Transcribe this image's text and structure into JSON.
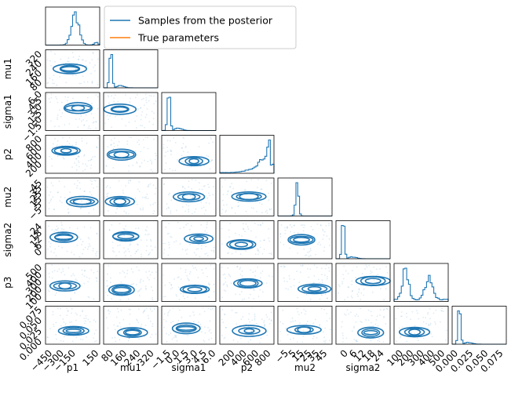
{
  "chart_data": {
    "type": "scatter",
    "subtype": "corner-plot",
    "params": [
      {
        "name": "P1",
        "label": "mu1",
        "xticks": [
          "−450",
          "−300",
          "−150",
          "150"
        ],
        "xtick_values": [
          -450,
          -300,
          -150,
          150
        ],
        "range": [
          -500,
          200
        ],
        "hist_shape": "unimodal-left"
      },
      {
        "name": "P2",
        "label": "mu1",
        "xticks": [
          "80",
          "160",
          "240",
          "320"
        ],
        "xtick_values": [
          80,
          160,
          240,
          320
        ],
        "range": [
          40,
          360
        ],
        "hist_shape": "spike-left"
      },
      {
        "name": "P3",
        "label": "sigma1",
        "xticks": [
          "−1.5",
          "0.0",
          "1.5",
          "3.0",
          "4.5",
          "6.0"
        ],
        "xtick_values": [
          -1.5,
          0.0,
          1.5,
          3.0,
          4.5,
          6.0
        ],
        "range": [
          -2.5,
          6.5
        ],
        "hist_shape": "spike-left"
      },
      {
        "name": "P4",
        "label": "p2",
        "xticks": [
          "200",
          "400",
          "600",
          "800"
        ],
        "xtick_values": [
          200,
          400,
          600,
          800
        ],
        "range": [
          0,
          900
        ],
        "hist_shape": "ramp-right"
      },
      {
        "name": "P5",
        "label": "mu2",
        "xticks": [
          "−5",
          "5",
          "15",
          "25",
          "35",
          "45"
        ],
        "xtick_values": [
          -5,
          5,
          15,
          25,
          35,
          45
        ],
        "range": [
          -15,
          55
        ],
        "hist_shape": "spike-mid"
      },
      {
        "name": "P6",
        "label": "sigma2",
        "xticks": [
          "0",
          "6",
          "12",
          "18",
          "24"
        ],
        "xtick_values": [
          0,
          6,
          12,
          18,
          24
        ],
        "range": [
          -6,
          30
        ],
        "hist_shape": "spike-left"
      },
      {
        "name": "P7",
        "label": "p3",
        "xticks": [
          "100",
          "200",
          "300",
          "400",
          "500"
        ],
        "xtick_values": [
          100,
          200,
          300,
          400,
          500
        ],
        "range": [
          40,
          560
        ],
        "hist_shape": "bimodal"
      },
      {
        "name": "P8",
        "label": "",
        "xticks": [
          "0.000",
          "0.025",
          "0.050",
          "0.075"
        ],
        "xtick_values": [
          0.0,
          0.025,
          0.05,
          0.075
        ],
        "range": [
          -0.005,
          0.085
        ],
        "hist_shape": "spike-left"
      }
    ],
    "row_ylabels": [
      "",
      "mu1",
      "sigma1",
      "p2",
      "mu2",
      "sigma2",
      "p3",
      ""
    ],
    "row_yticks": [
      [],
      [
        "80",
        "160",
        "240",
        "320"
      ],
      [
        "−1.5",
        "0.0",
        "1.5",
        "3.0",
        "4.5",
        "6.0"
      ],
      [
        "200",
        "400",
        "600",
        "800"
      ],
      [
        "−5",
        "5",
        "15",
        "25",
        "35",
        "45"
      ],
      [
        "0",
        "6",
        "12",
        "18",
        "24"
      ],
      [
        "100",
        "200",
        "300",
        "400",
        "500"
      ],
      [
        "0.000",
        "0.025",
        "0.050",
        "0.075"
      ]
    ],
    "x_axis_labels": [
      "p1",
      "mu1",
      "sigma1",
      "p2",
      "mu2",
      "sigma2",
      "",
      ""
    ],
    "legend": {
      "placement": "top-center",
      "entries": [
        {
          "name": "Samples from the posterior",
          "color": "#1f77b4"
        },
        {
          "name": "True parameters",
          "color": "#ff7f0e"
        }
      ]
    },
    "colors": {
      "samples": "#1f77b4",
      "truth": "#ff7f0e"
    },
    "grid": false
  }
}
